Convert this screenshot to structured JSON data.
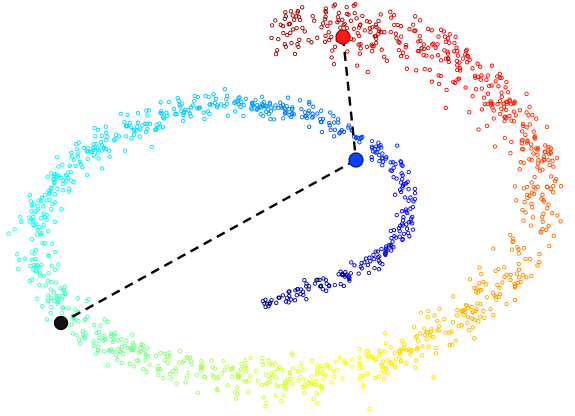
{
  "figure": {
    "kind": "swiss-roll-manifold-scatter",
    "background": "#ffffff",
    "colormap": [
      "#00008b",
      "#0000ff",
      "#00bfff",
      "#00ffff",
      "#7fff7f",
      "#ffff00",
      "#ff7f00",
      "#ff0000",
      "#8b0000"
    ],
    "point_marker": "hollow-circle",
    "highlighted_points": [
      {
        "name": "red-point",
        "color": "#ff0000"
      },
      {
        "name": "blue-point",
        "color": "#0000ff"
      },
      {
        "name": "black-point",
        "color": "#000000"
      }
    ],
    "connector_style": "dashed",
    "connector_color": "#000000"
  }
}
